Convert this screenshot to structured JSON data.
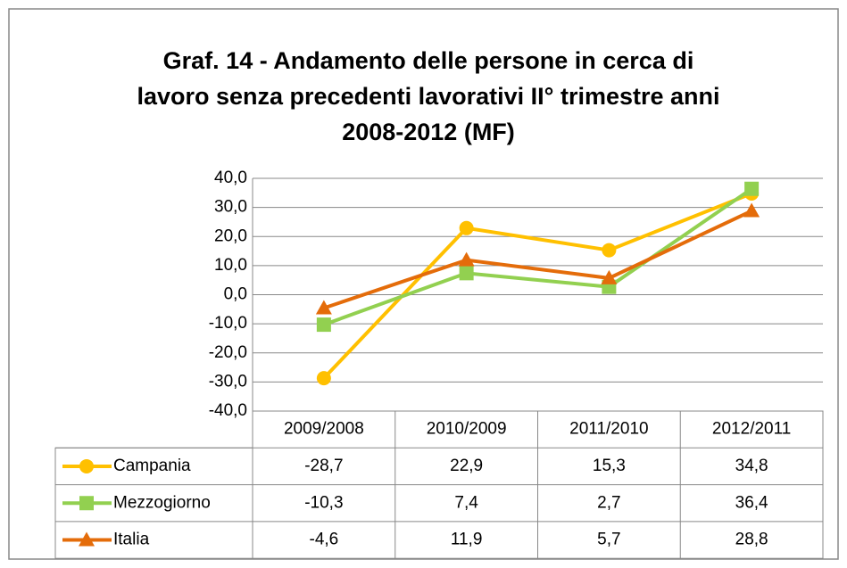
{
  "chart_data": {
    "type": "line",
    "title": [
      "Graf. 14 - Andamento delle persone in cerca di",
      "lavoro senza precedenti lavorativi II° trimestre anni",
      "2008-2012 (MF)"
    ],
    "categories": [
      "2009/2008",
      "2010/2009",
      "2011/2010",
      "2012/2011"
    ],
    "series": [
      {
        "name": "Campania",
        "color": "#ffc000",
        "marker": "circle",
        "values": [
          -28.7,
          22.9,
          15.3,
          34.8
        ],
        "value_labels": [
          "-28,7",
          "22,9",
          "15,3",
          "34,8"
        ]
      },
      {
        "name": "Mezzogiorno",
        "color": "#92d050",
        "marker": "square",
        "values": [
          -10.3,
          7.4,
          2.7,
          36.4
        ],
        "value_labels": [
          "-10,3",
          "7,4",
          "2,7",
          "36,4"
        ]
      },
      {
        "name": "Italia",
        "color": "#e46c0a",
        "marker": "triangle",
        "values": [
          -4.6,
          11.9,
          5.7,
          28.8
        ],
        "value_labels": [
          "-4,6",
          "11,9",
          "5,7",
          "28,8"
        ]
      }
    ],
    "ylim": [
      -40,
      40
    ],
    "yticks": [
      {
        "value": -40,
        "label": "-40,0"
      },
      {
        "value": -30,
        "label": "-30,0"
      },
      {
        "value": -20,
        "label": "-20,0"
      },
      {
        "value": -10,
        "label": "-10,0"
      },
      {
        "value": 0,
        "label": "0,0"
      },
      {
        "value": 10,
        "label": "10,0"
      },
      {
        "value": 20,
        "label": "20,0"
      },
      {
        "value": 30,
        "label": "30,0"
      },
      {
        "value": 40,
        "label": "40,0"
      }
    ],
    "grid": true
  }
}
